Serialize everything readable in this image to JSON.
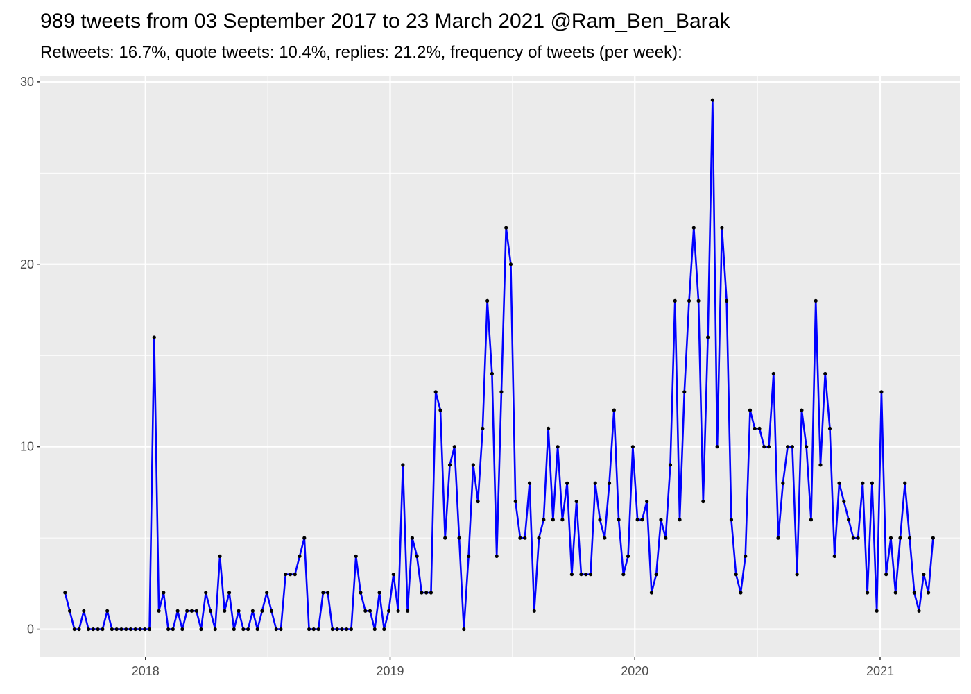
{
  "chart_data": {
    "type": "line",
    "title": "989 tweets from 03 September 2017 to 23 March 2021 @Ram_Ben_Barak",
    "subtitle": "Retweets: 16.7%, quote tweets: 10.4%, replies: 21.2%, frequency of tweets (per week):",
    "xlabel": "",
    "ylabel": "",
    "x_start": "2017-09-03",
    "x_interval": "week",
    "xlim": [
      "2017-07-28",
      "2021-04-30"
    ],
    "ylim": [
      -1.5,
      30.3
    ],
    "x_ticks": [
      {
        "date": "2018-01-01",
        "label": "2018"
      },
      {
        "date": "2019-01-01",
        "label": "2019"
      },
      {
        "date": "2020-01-01",
        "label": "2020"
      },
      {
        "date": "2021-01-01",
        "label": "2021"
      }
    ],
    "y_ticks": [
      0,
      10,
      20,
      30
    ],
    "grid": true,
    "panel_background": "#ebebeb",
    "line_color": "#0000ff",
    "point_color": "#000000",
    "values": [
      2,
      1,
      0,
      0,
      1,
      0,
      0,
      0,
      0,
      1,
      0,
      0,
      0,
      0,
      0,
      0,
      0,
      0,
      0,
      16,
      1,
      2,
      0,
      0,
      1,
      0,
      1,
      1,
      1,
      0,
      2,
      1,
      0,
      4,
      1,
      2,
      0,
      1,
      0,
      0,
      1,
      0,
      1,
      2,
      1,
      0,
      0,
      3,
      3,
      3,
      4,
      5,
      0,
      0,
      0,
      2,
      2,
      0,
      0,
      0,
      0,
      0,
      4,
      2,
      1,
      1,
      0,
      2,
      0,
      1,
      3,
      1,
      9,
      1,
      5,
      4,
      2,
      2,
      2,
      13,
      12,
      5,
      9,
      10,
      5,
      0,
      4,
      9,
      7,
      11,
      18,
      14,
      4,
      13,
      22,
      20,
      7,
      5,
      5,
      8,
      1,
      5,
      6,
      11,
      6,
      10,
      6,
      8,
      3,
      7,
      3,
      3,
      3,
      8,
      6,
      5,
      8,
      12,
      6,
      3,
      4,
      10,
      6,
      6,
      7,
      2,
      3,
      6,
      5,
      9,
      18,
      6,
      13,
      18,
      22,
      18,
      7,
      16,
      29,
      10,
      22,
      18,
      6,
      3,
      2,
      4,
      12,
      11,
      11,
      10,
      10,
      14,
      5,
      8,
      10,
      10,
      3,
      12,
      10,
      6,
      18,
      9,
      14,
      11,
      4,
      8,
      7,
      6,
      5,
      5,
      8,
      2,
      8,
      1,
      13,
      3,
      5,
      2,
      5,
      8,
      5,
      2,
      1,
      3,
      2,
      5
    ]
  }
}
